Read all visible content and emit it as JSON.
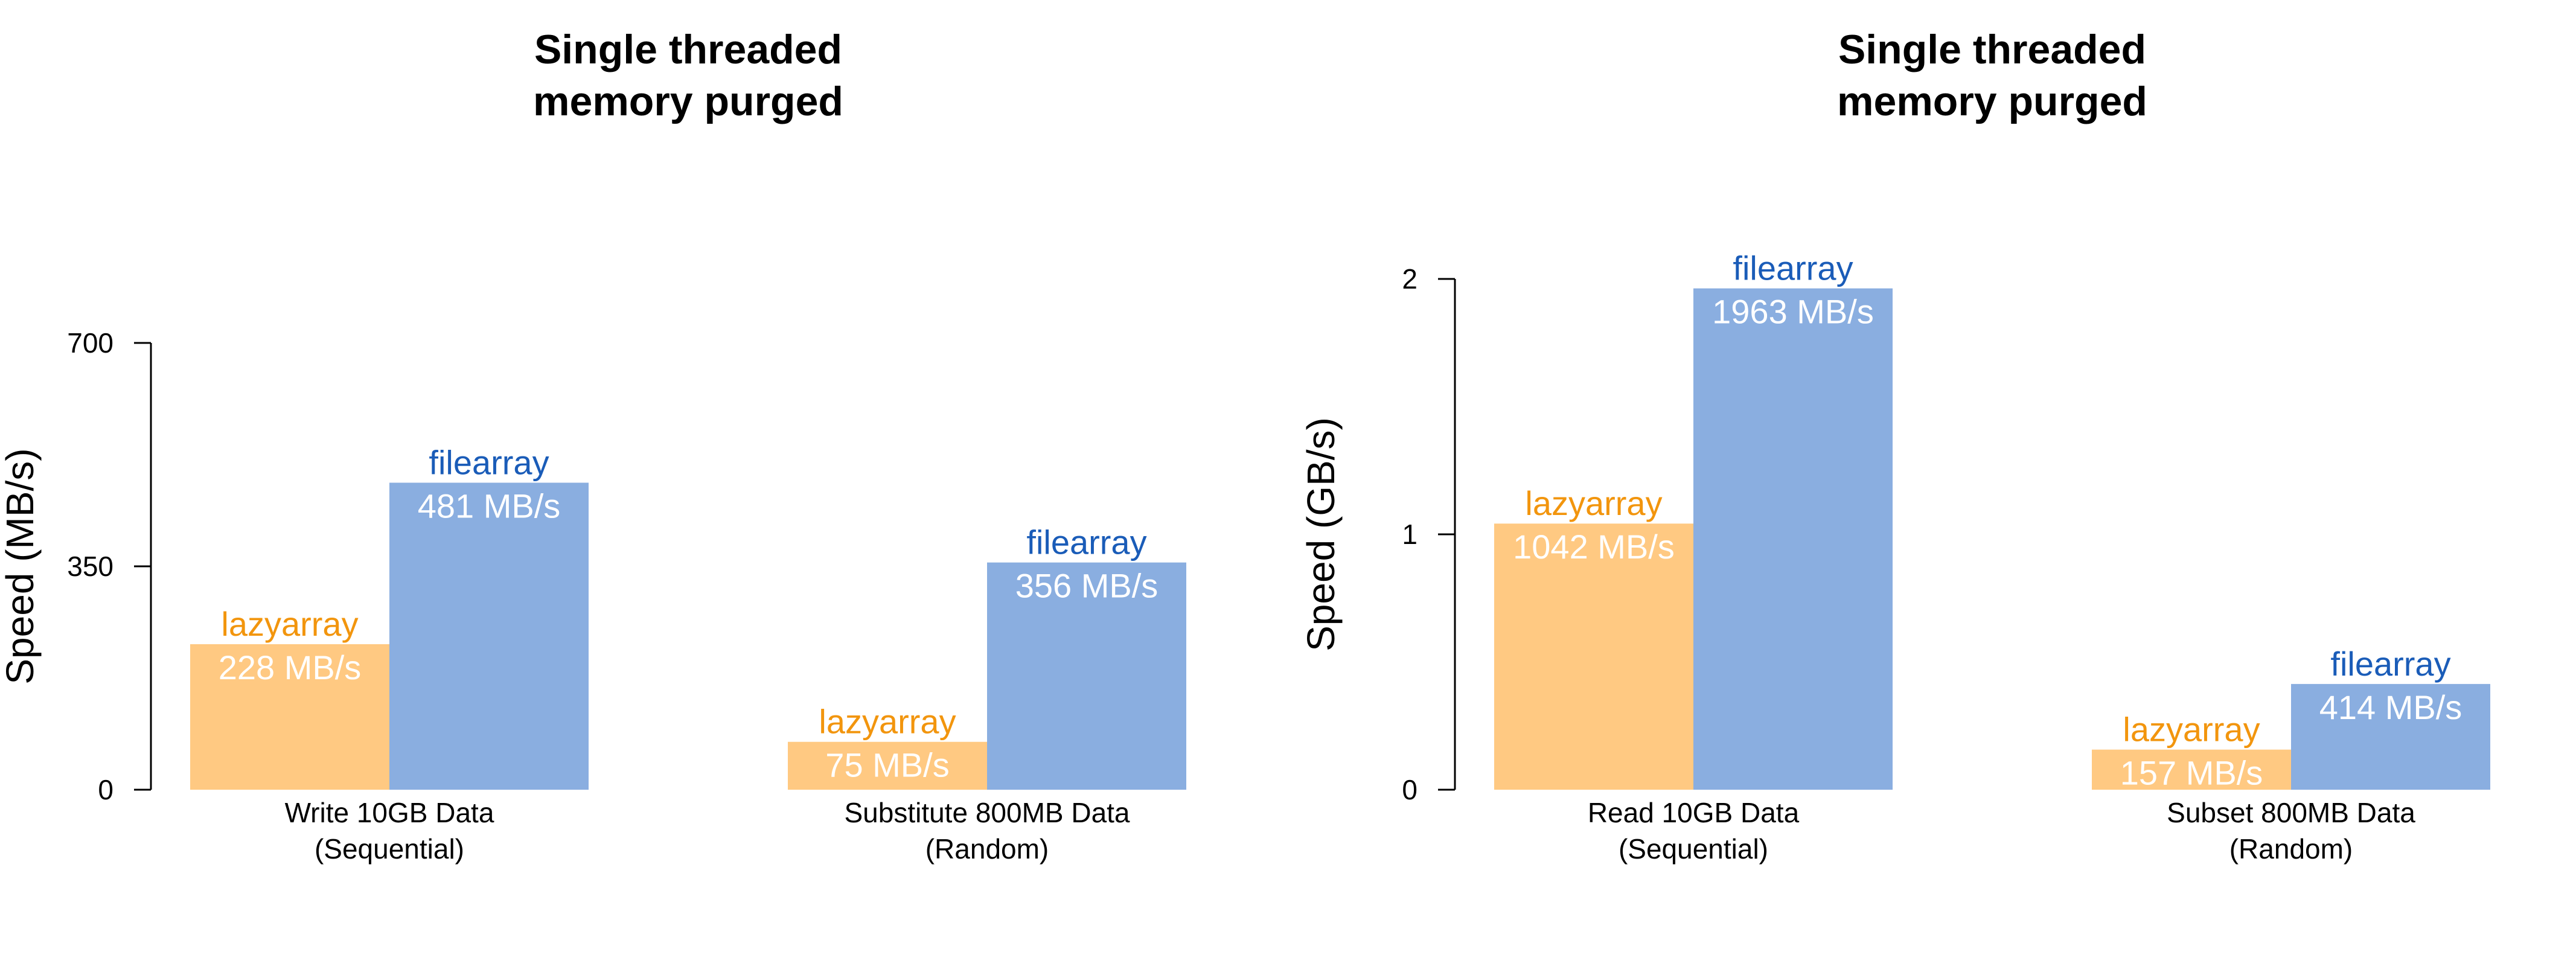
{
  "chart_data": [
    {
      "type": "bar",
      "title": [
        "Single threaded",
        "memory purged"
      ],
      "xlabel": "",
      "ylabel": "Speed (MB/s)",
      "ylim": [
        0,
        700
      ],
      "yticks": [
        0,
        350,
        700
      ],
      "ytick_labels": [
        "0",
        "350",
        "700"
      ],
      "categories": [
        [
          "Write 10GB Data",
          "(Sequential)"
        ],
        [
          "Substitute 800MB Data",
          "(Random)"
        ]
      ],
      "series": [
        {
          "name": "lazyarray",
          "color": "#FFC982",
          "label_color": "#F2950D",
          "values": [
            228,
            75
          ],
          "value_labels": [
            "228 MB/s",
            "75 MB/s"
          ]
        },
        {
          "name": "filearray",
          "color": "#8AAEE0",
          "label_color": "#1A5CB8",
          "values": [
            481,
            356
          ],
          "value_labels": [
            "481 MB/s",
            "356 MB/s"
          ]
        }
      ],
      "grid": false,
      "legend": "none"
    },
    {
      "type": "bar",
      "title": [
        "Single threaded",
        "memory purged"
      ],
      "xlabel": "",
      "ylabel": "Speed (GB/s)",
      "ylim": [
        0,
        2
      ],
      "yticks": [
        0,
        1,
        2
      ],
      "ytick_labels": [
        "0",
        "1",
        "2"
      ],
      "categories": [
        [
          "Read 10GB Data",
          "(Sequential)"
        ],
        [
          "Subset 800MB Data",
          "(Random)"
        ]
      ],
      "series": [
        {
          "name": "lazyarray",
          "color": "#FFC982",
          "label_color": "#F2950D",
          "values": [
            1.042,
            0.157
          ],
          "value_labels": [
            "1042 MB/s",
            "157 MB/s"
          ]
        },
        {
          "name": "filearray",
          "color": "#8AAEE0",
          "label_color": "#1A5CB8",
          "values": [
            1.963,
            0.414
          ],
          "value_labels": [
            "1963 MB/s",
            "414 MB/s"
          ]
        }
      ],
      "grid": false,
      "legend": "none"
    }
  ]
}
